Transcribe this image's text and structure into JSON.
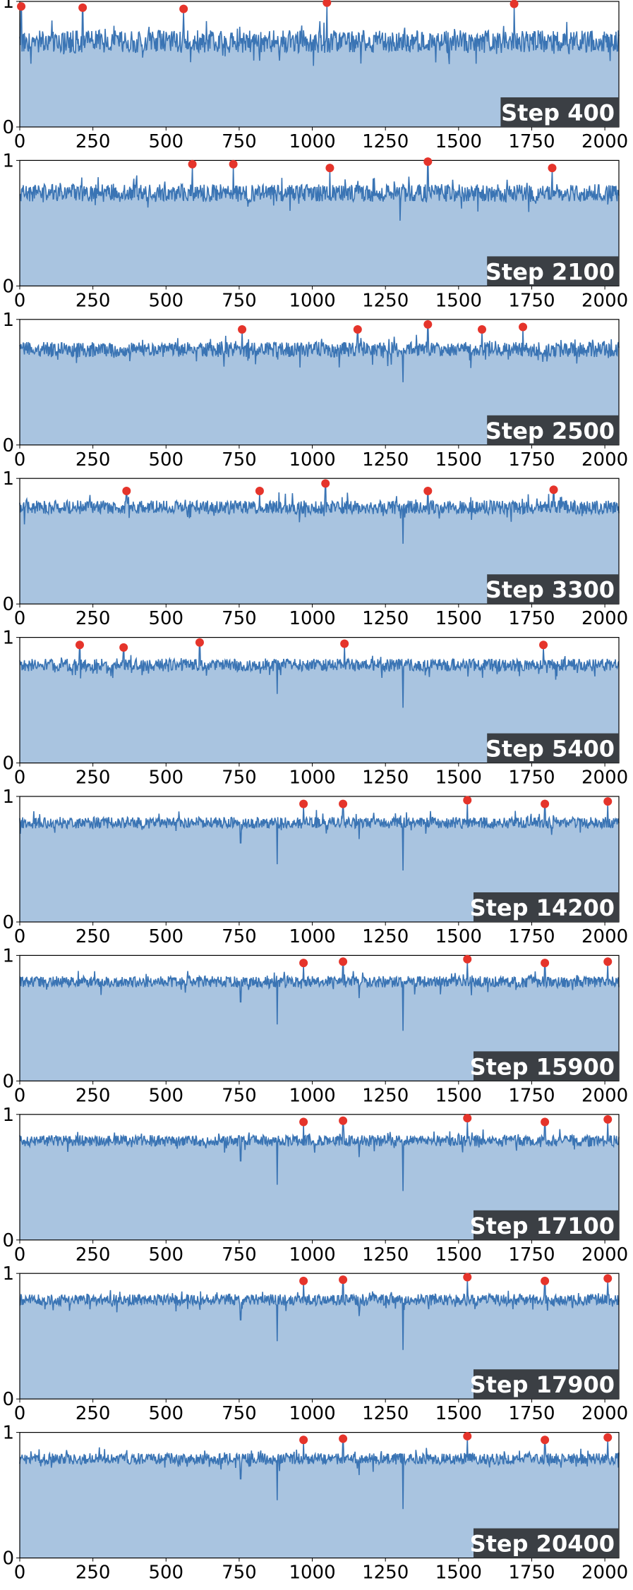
{
  "chart_data": [
    {
      "type": "area",
      "title": "",
      "label": "Step 400",
      "xlim": [
        0,
        2048
      ],
      "ylim": [
        0,
        1
      ],
      "xticks": [
        "0",
        "250",
        "500",
        "750",
        "1000",
        "1250",
        "1500",
        "1750",
        "2000"
      ],
      "yticks": [
        "0",
        "1"
      ],
      "baseline": 0.68,
      "noise": 0.09,
      "dips": [],
      "peaks": [
        {
          "x": 5,
          "y": 0.96
        },
        {
          "x": 215,
          "y": 0.95
        },
        {
          "x": 560,
          "y": 0.94
        },
        {
          "x": 1050,
          "y": 0.99
        },
        {
          "x": 1690,
          "y": 0.98
        }
      ]
    },
    {
      "type": "area",
      "title": "",
      "label": "Step 2100",
      "xlim": [
        0,
        2048
      ],
      "ylim": [
        0,
        1
      ],
      "xticks": [
        "0",
        "250",
        "500",
        "750",
        "1000",
        "1250",
        "1500",
        "1750",
        "2000"
      ],
      "yticks": [
        "0",
        "1"
      ],
      "baseline": 0.74,
      "noise": 0.07,
      "dips": [
        {
          "x": 1300,
          "y": 0.52
        }
      ],
      "peaks": [
        {
          "x": 590,
          "y": 0.97
        },
        {
          "x": 730,
          "y": 0.97
        },
        {
          "x": 1060,
          "y": 0.94
        },
        {
          "x": 1395,
          "y": 0.99
        },
        {
          "x": 1820,
          "y": 0.94
        }
      ]
    },
    {
      "type": "area",
      "title": "",
      "label": "Step 2500",
      "xlim": [
        0,
        2048
      ],
      "ylim": [
        0,
        1
      ],
      "xticks": [
        "0",
        "250",
        "500",
        "750",
        "1000",
        "1250",
        "1500",
        "1750",
        "2000"
      ],
      "yticks": [
        "0",
        "1"
      ],
      "baseline": 0.76,
      "noise": 0.06,
      "dips": [
        {
          "x": 1310,
          "y": 0.5
        }
      ],
      "peaks": [
        {
          "x": 760,
          "y": 0.92
        },
        {
          "x": 1155,
          "y": 0.92
        },
        {
          "x": 1395,
          "y": 0.96
        },
        {
          "x": 1580,
          "y": 0.92
        },
        {
          "x": 1720,
          "y": 0.94
        }
      ]
    },
    {
      "type": "area",
      "title": "",
      "label": "Step 3300",
      "xlim": [
        0,
        2048
      ],
      "ylim": [
        0,
        1
      ],
      "xticks": [
        "0",
        "250",
        "500",
        "750",
        "1000",
        "1250",
        "1500",
        "1750",
        "2000"
      ],
      "yticks": [
        "0",
        "1"
      ],
      "baseline": 0.77,
      "noise": 0.055,
      "dips": [
        {
          "x": 1310,
          "y": 0.48
        }
      ],
      "peaks": [
        {
          "x": 365,
          "y": 0.9
        },
        {
          "x": 820,
          "y": 0.9
        },
        {
          "x": 1045,
          "y": 0.96
        },
        {
          "x": 1395,
          "y": 0.9
        },
        {
          "x": 1825,
          "y": 0.91
        }
      ]
    },
    {
      "type": "area",
      "title": "",
      "label": "Step 5400",
      "xlim": [
        0,
        2048
      ],
      "ylim": [
        0,
        1
      ],
      "xticks": [
        "0",
        "250",
        "500",
        "750",
        "1000",
        "1250",
        "1500",
        "1750",
        "2000"
      ],
      "yticks": [
        "0",
        "1"
      ],
      "baseline": 0.78,
      "noise": 0.05,
      "dips": [
        {
          "x": 880,
          "y": 0.55
        },
        {
          "x": 1310,
          "y": 0.44
        },
        {
          "x": 190,
          "y": 0.7
        }
      ],
      "peaks": [
        {
          "x": 205,
          "y": 0.94
        },
        {
          "x": 355,
          "y": 0.92
        },
        {
          "x": 615,
          "y": 0.96
        },
        {
          "x": 1110,
          "y": 0.95
        },
        {
          "x": 1790,
          "y": 0.94
        }
      ]
    },
    {
      "type": "area",
      "title": "",
      "label": "Step 14200",
      "xlim": [
        0,
        2048
      ],
      "ylim": [
        0,
        1
      ],
      "xticks": [
        "0",
        "250",
        "500",
        "750",
        "1000",
        "1250",
        "1500",
        "1750",
        "2000"
      ],
      "yticks": [
        "0",
        "1"
      ],
      "baseline": 0.79,
      "noise": 0.045,
      "dips": [
        {
          "x": 755,
          "y": 0.63
        },
        {
          "x": 880,
          "y": 0.46
        },
        {
          "x": 1310,
          "y": 0.41
        },
        {
          "x": 1160,
          "y": 0.66
        }
      ],
      "peaks": [
        {
          "x": 970,
          "y": 0.94
        },
        {
          "x": 1105,
          "y": 0.94
        },
        {
          "x": 1530,
          "y": 0.97
        },
        {
          "x": 1795,
          "y": 0.94
        },
        {
          "x": 2010,
          "y": 0.96
        }
      ]
    },
    {
      "type": "area",
      "title": "",
      "label": "Step 15900",
      "xlim": [
        0,
        2048
      ],
      "ylim": [
        0,
        1
      ],
      "xticks": [
        "0",
        "250",
        "500",
        "750",
        "1000",
        "1250",
        "1500",
        "1750",
        "2000"
      ],
      "yticks": [
        "0",
        "1"
      ],
      "baseline": 0.79,
      "noise": 0.045,
      "dips": [
        {
          "x": 755,
          "y": 0.63
        },
        {
          "x": 880,
          "y": 0.45
        },
        {
          "x": 1310,
          "y": 0.4
        },
        {
          "x": 1160,
          "y": 0.66
        }
      ],
      "peaks": [
        {
          "x": 970,
          "y": 0.94
        },
        {
          "x": 1105,
          "y": 0.95
        },
        {
          "x": 1530,
          "y": 0.97
        },
        {
          "x": 1795,
          "y": 0.94
        },
        {
          "x": 2010,
          "y": 0.95
        }
      ]
    },
    {
      "type": "area",
      "title": "",
      "label": "Step 17100",
      "xlim": [
        0,
        2048
      ],
      "ylim": [
        0,
        1
      ],
      "xticks": [
        "0",
        "250",
        "500",
        "750",
        "1000",
        "1250",
        "1500",
        "1750",
        "2000"
      ],
      "yticks": [
        "0",
        "1"
      ],
      "baseline": 0.79,
      "noise": 0.045,
      "dips": [
        {
          "x": 755,
          "y": 0.63
        },
        {
          "x": 880,
          "y": 0.44
        },
        {
          "x": 1310,
          "y": 0.39
        },
        {
          "x": 1160,
          "y": 0.66
        }
      ],
      "peaks": [
        {
          "x": 970,
          "y": 0.94
        },
        {
          "x": 1105,
          "y": 0.95
        },
        {
          "x": 1530,
          "y": 0.97
        },
        {
          "x": 1795,
          "y": 0.94
        },
        {
          "x": 2010,
          "y": 0.96
        }
      ]
    },
    {
      "type": "area",
      "title": "",
      "label": "Step 17900",
      "xlim": [
        0,
        2048
      ],
      "ylim": [
        0,
        1
      ],
      "xticks": [
        "0",
        "250",
        "500",
        "750",
        "1000",
        "1250",
        "1500",
        "1750",
        "2000"
      ],
      "yticks": [
        "0",
        "1"
      ],
      "baseline": 0.79,
      "noise": 0.045,
      "dips": [
        {
          "x": 755,
          "y": 0.63
        },
        {
          "x": 880,
          "y": 0.46
        },
        {
          "x": 1310,
          "y": 0.39
        },
        {
          "x": 1160,
          "y": 0.66
        }
      ],
      "peaks": [
        {
          "x": 970,
          "y": 0.94
        },
        {
          "x": 1105,
          "y": 0.95
        },
        {
          "x": 1530,
          "y": 0.97
        },
        {
          "x": 1795,
          "y": 0.94
        },
        {
          "x": 2010,
          "y": 0.96
        }
      ]
    },
    {
      "type": "area",
      "title": "",
      "label": "Step 20400",
      "xlim": [
        0,
        2048
      ],
      "ylim": [
        0,
        1
      ],
      "xticks": [
        "0",
        "250",
        "500",
        "750",
        "1000",
        "1250",
        "1500",
        "1750",
        "2000"
      ],
      "yticks": [
        "0",
        "1"
      ],
      "baseline": 0.79,
      "noise": 0.045,
      "dips": [
        {
          "x": 755,
          "y": 0.63
        },
        {
          "x": 880,
          "y": 0.46
        },
        {
          "x": 1310,
          "y": 0.39
        },
        {
          "x": 1160,
          "y": 0.66
        }
      ],
      "peaks": [
        {
          "x": 970,
          "y": 0.94
        },
        {
          "x": 1105,
          "y": 0.95
        },
        {
          "x": 1530,
          "y": 0.97
        },
        {
          "x": 1795,
          "y": 0.94
        },
        {
          "x": 2010,
          "y": 0.96
        }
      ]
    }
  ],
  "colors": {
    "line": "#3a74b4",
    "fill": "#a9c4e0",
    "peak": "#e5342b",
    "label_bg": "#3b3f44",
    "label_text": "#ffffff"
  },
  "grid": false
}
